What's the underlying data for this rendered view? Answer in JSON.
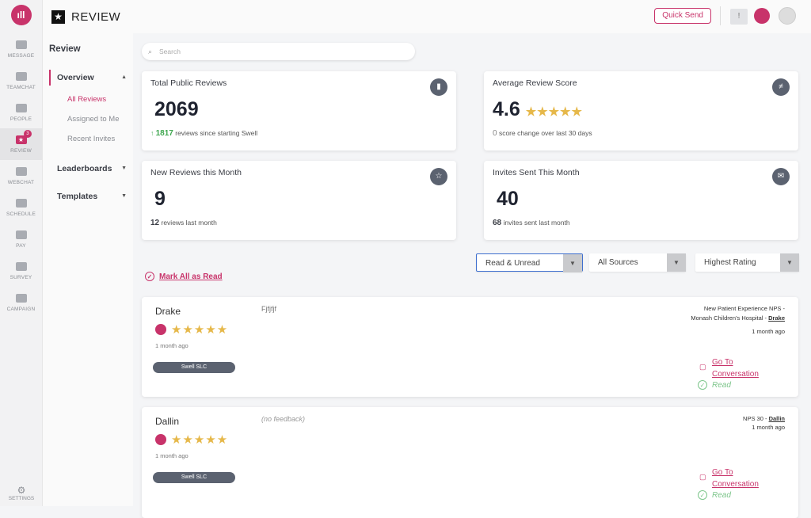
{
  "header": {
    "title": "REVIEW",
    "quick_send": "Quick Send"
  },
  "rail": {
    "items": [
      {
        "label": "MESSAGE"
      },
      {
        "label": "TEAMCHAT"
      },
      {
        "label": "PEOPLE"
      },
      {
        "label": "REVIEW",
        "badge": "3"
      },
      {
        "label": "WEBCHAT"
      },
      {
        "label": "SCHEDULE"
      },
      {
        "label": "PAY"
      },
      {
        "label": "SURVEY"
      },
      {
        "label": "CAMPAIGN"
      }
    ],
    "settings": "SETTINGS"
  },
  "subnav": {
    "title": "Review",
    "overview": "Overview",
    "subitems": [
      "All Reviews",
      "Assigned to Me",
      "Recent Invites"
    ],
    "leaderboards": "Leaderboards",
    "templates": "Templates"
  },
  "search": {
    "placeholder": "Search"
  },
  "cards": [
    {
      "label": "Total Public Reviews",
      "value": "2069",
      "sub_value": "1817",
      "sub_text": "reviews since starting Swell",
      "icon": "bar-chart-icon"
    },
    {
      "label": "Average Review Score",
      "value": "4.6",
      "rating": 4.6,
      "sub_value": "0",
      "sub_text": "score change over last 30 days",
      "icon": "trend-icon"
    },
    {
      "label": "New Reviews this Month",
      "value": "9",
      "sub_value": "12",
      "sub_text": "reviews last month",
      "icon": "star-icon"
    },
    {
      "label": "Invites Sent This Month",
      "value": "40",
      "sub_value": "68",
      "sub_text": "invites sent last month",
      "icon": "mail-icon"
    }
  ],
  "filters": {
    "read": "Read & Unread",
    "sources": "All Sources",
    "sort": "Highest Rating"
  },
  "mark_all": "Mark All as Read",
  "reviews": [
    {
      "name": "Drake",
      "feedback": "Fjfjfjf",
      "rating": 5,
      "ago": "1 month ago",
      "tag": "Swell SLC",
      "survey": "New Patient Experience NPS -",
      "survey2": "Monash Children's Hospital -",
      "survey_user": "Drake",
      "ago_right": "1 month ago",
      "goto1": "Go To",
      "goto2": "Conversation",
      "status": "Read"
    },
    {
      "name": "Dallin",
      "feedback": "(no feedback)",
      "rating": 5,
      "ago": "1 month ago",
      "tag": "Swell SLC",
      "survey": "",
      "survey2": "NPS 30 -",
      "survey_user": "Dallin",
      "ago_right": "1 month ago",
      "goto1": "Go To",
      "goto2": "Conversation",
      "status": "Read"
    }
  ],
  "colors": {
    "accent": "#c8336a",
    "star": "#e6b84a",
    "read": "#7cc58a"
  }
}
